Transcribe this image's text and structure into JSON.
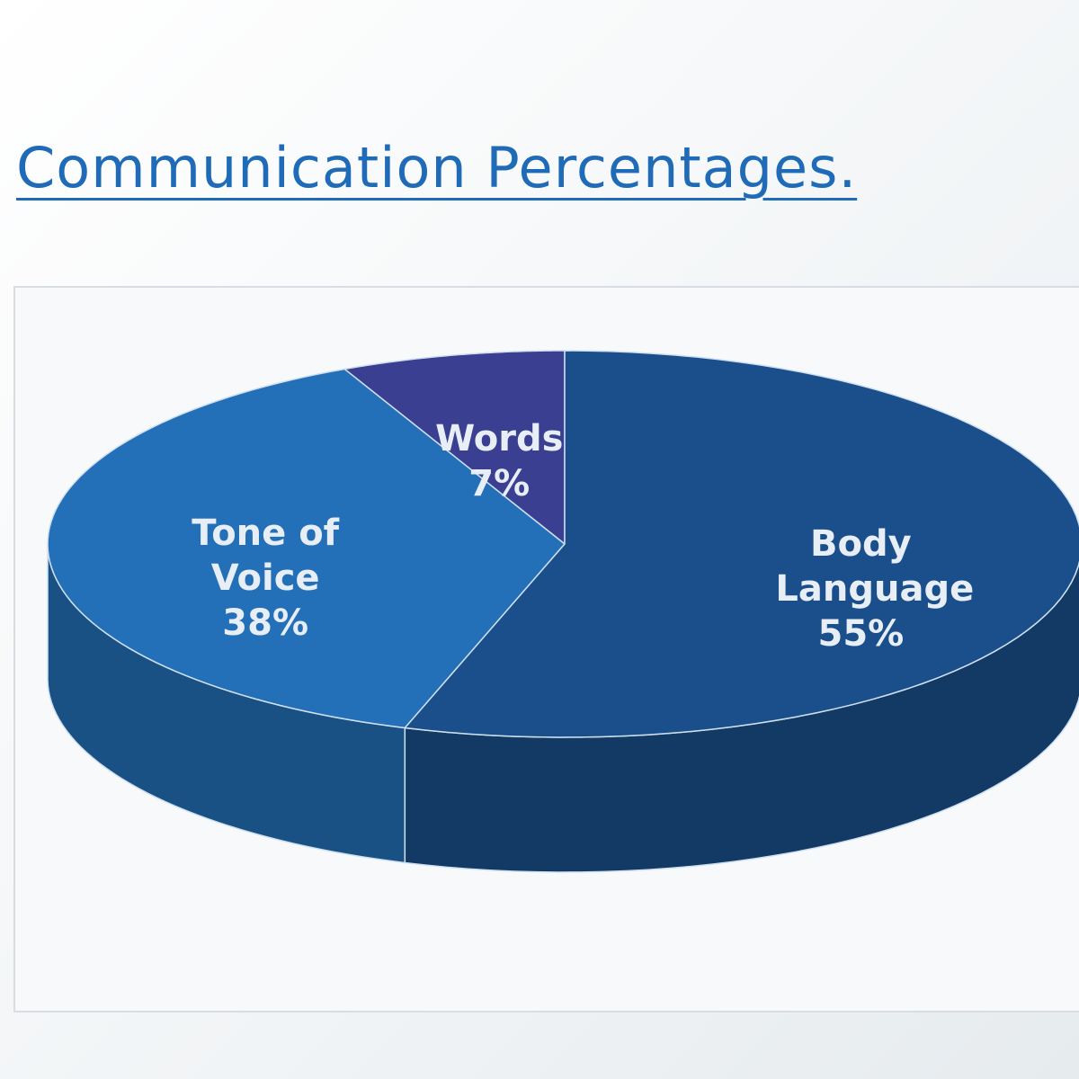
{
  "chart_data": {
    "type": "pie3d",
    "title": "Communication Percentages.",
    "categories": [
      "Words",
      "Tone of Voice",
      "Body Language"
    ],
    "values": [
      7,
      38,
      55
    ],
    "value_labels": [
      "7%",
      "38%",
      "55%"
    ],
    "colors": [
      "#3a3f92",
      "#2470b8",
      "#1b4f8c"
    ]
  }
}
